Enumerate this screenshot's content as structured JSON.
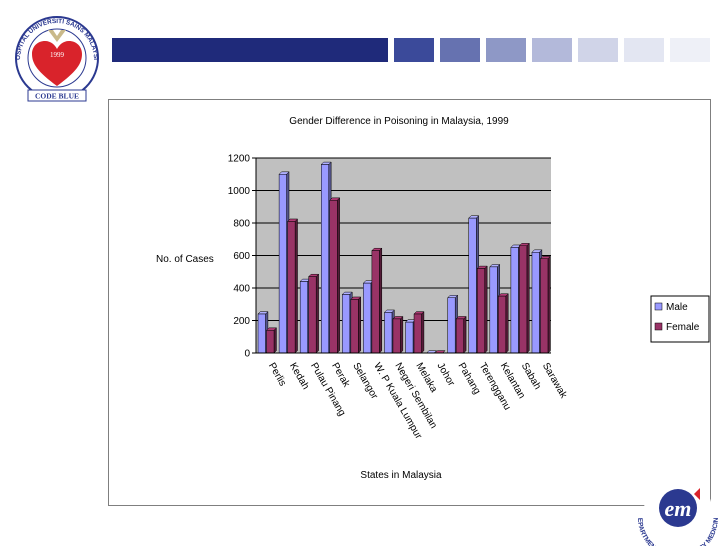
{
  "slide": {
    "left_logo": {
      "ring_text": "HOSPITAL UNIVERSITI SAINS MALAYSIA",
      "year": "1999",
      "banner": "CODE BLUE"
    },
    "right_logo": {
      "ring_text": "DEPARTMENT OF EMERGENCY MEDICINE",
      "mark": "em"
    },
    "colors": {
      "bar_dark": "#1f2a7a",
      "bar_light": "#e6e8f3",
      "logo_red": "#d9232b",
      "logo_blue": "#2b3990"
    }
  },
  "chart_data": {
    "type": "bar",
    "title": "Gender Difference in Poisoning in Malaysia, 1999",
    "xlabel": "States in Malaysia",
    "ylabel": "No. of Cases",
    "categories": [
      "Perlis",
      "Kedah",
      "Pulau Pinang",
      "Perak",
      "Selangor",
      "W. P Kuala Lumpur",
      "Negeri Sembilan",
      "Melaka",
      "Johor",
      "Pahang",
      "Terengganu",
      "Kelantan",
      "Sabah",
      "Sarawak"
    ],
    "series": [
      {
        "name": "Male",
        "values": [
          240,
          1100,
          440,
          1160,
          360,
          430,
          250,
          190,
          0,
          340,
          830,
          530,
          650,
          620
        ]
      },
      {
        "name": "Female",
        "values": [
          140,
          810,
          470,
          940,
          330,
          630,
          210,
          240,
          0,
          210,
          520,
          350,
          660,
          580
        ]
      }
    ],
    "ylim": [
      0,
      1200
    ],
    "yticks": [
      0,
      200,
      400,
      600,
      800,
      1000,
      1200
    ],
    "grid": true,
    "legend": "right",
    "colors": {
      "male": "#9999ff",
      "female": "#993366",
      "plot_background": "#c0c0c0"
    }
  }
}
